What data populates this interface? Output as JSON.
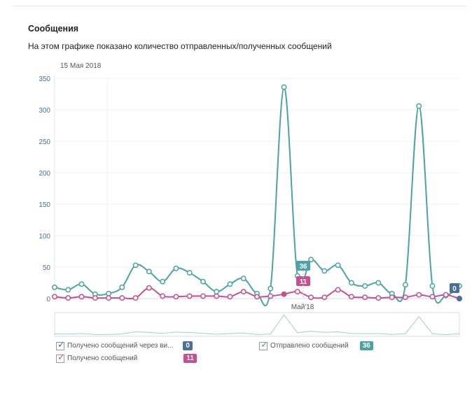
{
  "header": {
    "title": "Сообщения",
    "subtitle": "На этом графике показано количество отправленных/полученных сообщений"
  },
  "colors": {
    "sent": "#4ba3a3",
    "received": "#c4508f",
    "via_widget": "#4a6f9c"
  },
  "chart_data": {
    "type": "line",
    "date_label": "15 Мая 2018",
    "x_axis_label": "Май'18",
    "ylim": [
      0,
      350
    ],
    "yticks": [
      "0",
      "50",
      "100",
      "150",
      "200",
      "250",
      "300",
      "350"
    ],
    "grid": true,
    "series": [
      {
        "name": "Отправлено сообщений",
        "values": [
          18,
          14,
          23,
          7,
          8,
          18,
          53,
          43,
          27,
          48,
          41,
          27,
          11,
          23,
          32,
          8,
          16,
          336,
          36,
          62,
          44,
          53,
          25,
          20,
          25,
          8,
          22,
          306,
          20,
          5,
          20
        ]
      },
      {
        "name": "Получено сообщений",
        "values": [
          3,
          1,
          3,
          1,
          1,
          1,
          1,
          17,
          4,
          3,
          4,
          4,
          4,
          3,
          11,
          3,
          4,
          7,
          11,
          2,
          2,
          14,
          3,
          2,
          1,
          2,
          2,
          6,
          3,
          6,
          0
        ]
      },
      {
        "name": "Получено сообщений через ви...",
        "values": [
          null,
          null,
          null,
          null,
          null,
          null,
          null,
          null,
          null,
          null,
          null,
          null,
          null,
          null,
          null,
          null,
          null,
          null,
          null,
          null,
          null,
          null,
          null,
          null,
          null,
          null,
          null,
          null,
          null,
          null,
          0
        ]
      }
    ],
    "tooltips": {
      "sent": "36",
      "received": "11",
      "via_widget": "0"
    }
  },
  "legend": [
    {
      "label": "Получено сообщений через ви...",
      "value": "0",
      "color": "#4a6f9c"
    },
    {
      "label": "Отправлено сообщений",
      "value": "36",
      "color": "#4ba3a3"
    },
    {
      "label": "Получено сообщений",
      "value": "11",
      "color": "#c4508f"
    }
  ]
}
